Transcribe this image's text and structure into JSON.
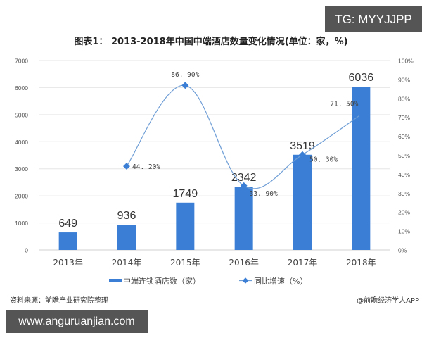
{
  "watermarks": {
    "top_right": "TG: MYYJJPP",
    "bottom_left": "www.anguruanjian.com"
  },
  "title": "图表1： 2013-2018年中国中端酒店数量变化情况(单位：家，%)",
  "footer": {
    "source": "资料来源：前瞻产业研究院整理",
    "credit": "@前瞻经济学人APP"
  },
  "chart_data": {
    "type": "bar",
    "title": "图表1： 2013-2018年中国中端酒店数量变化情况(单位：家，%)",
    "categories": [
      "2013年",
      "2014年",
      "2015年",
      "2016年",
      "2017年",
      "2018年"
    ],
    "series": [
      {
        "name": "中端连锁酒店数（家）",
        "type": "bar",
        "axis": "left",
        "color": "#3a7fd5",
        "values": [
          649,
          936,
          1749,
          2342,
          3519,
          6036
        ],
        "labels": [
          "649",
          "936",
          "1749",
          "2342",
          "3519",
          "6036"
        ]
      },
      {
        "name": "同比增速（%）",
        "type": "line",
        "axis": "right",
        "color": "#6f9ed6",
        "values": [
          null,
          44.2,
          86.9,
          33.9,
          50.3,
          71.5
        ],
        "labels": [
          "",
          "44. 20%",
          "86. 90%",
          "33. 90%",
          "50. 30%",
          "71. 50%"
        ]
      }
    ],
    "y_left": {
      "min": 0,
      "max": 7000,
      "ticks": [
        "0",
        "1000",
        "2000",
        "3000",
        "4000",
        "5000",
        "6000",
        "7000"
      ]
    },
    "y_right": {
      "min": 0,
      "max": 100,
      "ticks": [
        "0%",
        "10%",
        "20%",
        "30%",
        "40%",
        "50%",
        "60%",
        "70%",
        "80%",
        "90%",
        "100%"
      ]
    },
    "grid": true,
    "legend_position": "bottom",
    "legend": [
      "中端连锁酒店数（家）",
      "同比增速（%）"
    ]
  }
}
